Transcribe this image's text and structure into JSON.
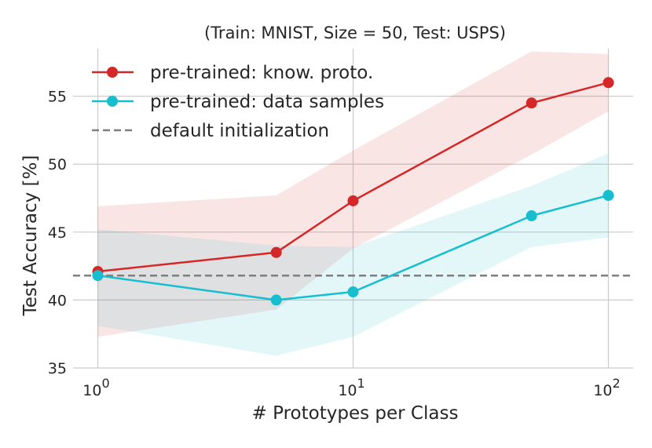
{
  "chart_data": {
    "type": "line",
    "title": "(Train: MNIST, Size = 50, Test: USPS)",
    "xlabel": "# Prototypes per Class",
    "ylabel": "Test Accuracy [%]",
    "xscale": "log",
    "xlim": [
      0.8,
      125
    ],
    "ylim": [
      35,
      58.5
    ],
    "x_ticks": [
      {
        "value": 1,
        "base": "10",
        "exp": "0"
      },
      {
        "value": 10,
        "base": "10",
        "exp": "1"
      },
      {
        "value": 100,
        "base": "10",
        "exp": "2"
      }
    ],
    "y_ticks": [
      35,
      40,
      45,
      50,
      55
    ],
    "x": [
      1,
      5,
      10,
      50,
      100
    ],
    "series": [
      {
        "name": "pre-trained: know. proto.",
        "color": "#d62728",
        "values": [
          42.1,
          43.5,
          47.3,
          54.5,
          56.0
        ],
        "band_upper": [
          46.9,
          47.7,
          51.0,
          58.3,
          58.1
        ],
        "band_lower": [
          37.3,
          39.3,
          43.8,
          50.7,
          53.9
        ]
      },
      {
        "name": "pre-trained: data samples",
        "color": "#17becf",
        "values": [
          41.8,
          40.0,
          40.6,
          46.2,
          47.7
        ],
        "band_upper": [
          45.2,
          44.0,
          43.9,
          48.4,
          50.8
        ],
        "band_lower": [
          38.1,
          35.9,
          37.3,
          43.9,
          44.6
        ]
      }
    ],
    "reference_line": {
      "name": "default initialization",
      "value": 41.8,
      "color": "#7f7f7f",
      "style": "dashed"
    },
    "legend_position": "top-left",
    "grid": true
  }
}
